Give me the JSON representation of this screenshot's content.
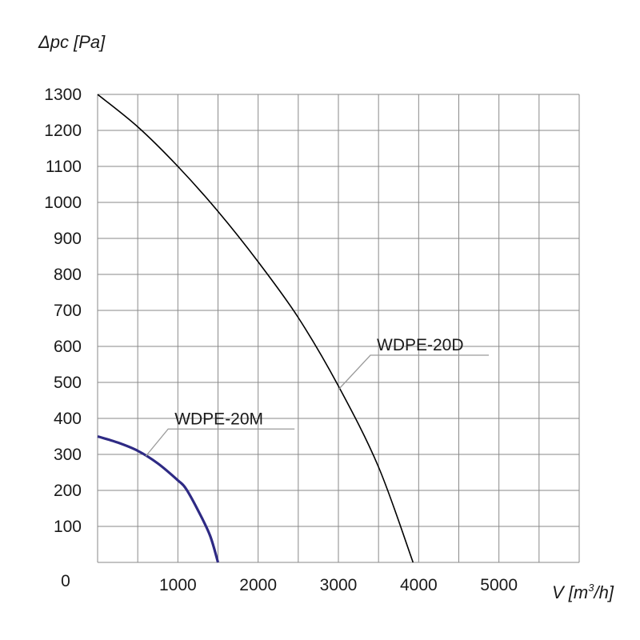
{
  "chart_data": {
    "type": "line",
    "ylabel": "Δpc [Pa]",
    "xlabel_prefix": "V [m",
    "xlabel_sup": "3",
    "xlabel_suffix": "/h]",
    "xlim": [
      0,
      6000
    ],
    "ylim": [
      0,
      1300
    ],
    "origin_label": "0",
    "x_ticks": [
      1000,
      2000,
      3000,
      4000,
      5000
    ],
    "x_ticks_labels": [
      "1000",
      "2000",
      "3000",
      "4000",
      "5000"
    ],
    "y_ticks": [
      100,
      200,
      300,
      400,
      500,
      600,
      700,
      800,
      900,
      1000,
      1100,
      1200,
      1300
    ],
    "y_ticks_labels": [
      "100",
      "200",
      "300",
      "400",
      "500",
      "600",
      "700",
      "800",
      "900",
      "1000",
      "1100",
      "1200",
      "1300"
    ],
    "grid": true,
    "series": [
      {
        "name": "WDPE-20D",
        "color": "#000000",
        "x": [
          0,
          500,
          1000,
          1500,
          2000,
          2500,
          3000,
          3500,
          3930
        ],
        "y": [
          1300,
          1210,
          1100,
          975,
          835,
          680,
          490,
          265,
          0
        ]
      },
      {
        "name": "WDPE-20M",
        "color": "#2e2a84",
        "x": [
          0,
          250,
          500,
          750,
          1000,
          1100,
          1250,
          1400,
          1500
        ],
        "y": [
          350,
          333,
          310,
          275,
          228,
          205,
          145,
          75,
          0
        ]
      }
    ],
    "annotations": [
      {
        "text": "WDPE-20D",
        "series": "WDPE-20D",
        "x": 3000,
        "y": 480
      },
      {
        "text": "WDPE-20M",
        "series": "WDPE-20M",
        "x": 600,
        "y": 295
      }
    ]
  }
}
